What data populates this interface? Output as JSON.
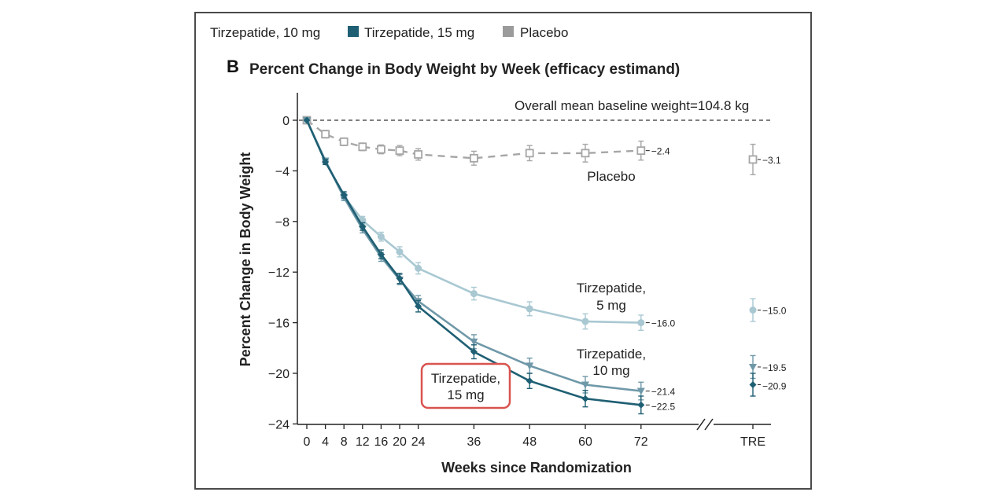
{
  "chart_data": {
    "type": "line",
    "panel_letter": "B",
    "title": "Percent Change in Body Weight by Week (efficacy estimand)",
    "xlabel": "Weeks since Randomization",
    "ylabel": "Percent Change in Body Weight",
    "x_ticks": [
      "0",
      "4",
      "8",
      "12",
      "16",
      "20",
      "24",
      "36",
      "48",
      "60",
      "72",
      "TRE"
    ],
    "y_ticks": [
      0,
      -4,
      -8,
      -12,
      -16,
      -20,
      -24
    ],
    "ylim": [
      -24,
      2
    ],
    "baseline_note": "Overall mean baseline weight=104.8 kg",
    "legend": [
      {
        "label": "Tirzepatide, 10 mg",
        "color": "#7fa3b1",
        "marker": "none"
      },
      {
        "label": "Tirzepatide, 15 mg",
        "color": "#1f5f73",
        "marker": "square"
      },
      {
        "label": "Placebo",
        "color": "#9b9b9b",
        "marker": "square"
      }
    ],
    "x": [
      0,
      4,
      8,
      12,
      16,
      20,
      24,
      36,
      48,
      60,
      72
    ],
    "series": [
      {
        "name": "Placebo",
        "color": "#a6a6a6",
        "style": "dashed",
        "marker": "open-square",
        "values": [
          0,
          -1.1,
          -1.7,
          -2.1,
          -2.3,
          -2.4,
          -2.7,
          -3.0,
          -2.6,
          -2.6,
          -2.4
        ],
        "errors": [
          0,
          0.3,
          0.3,
          0.3,
          0.35,
          0.4,
          0.45,
          0.55,
          0.6,
          0.7,
          0.75
        ],
        "end_label": "−2.4",
        "tre_value": -3.1,
        "tre_error": 1.2,
        "tre_label": "−3.1"
      },
      {
        "name": "Tirzepatide, 5 mg",
        "color": "#a9c8d2",
        "style": "solid",
        "marker": "circle",
        "values": [
          0,
          -3.2,
          -6.0,
          -7.9,
          -9.2,
          -10.4,
          -11.7,
          -13.7,
          -14.9,
          -15.9,
          -16.0
        ],
        "errors": [
          0,
          0.2,
          0.25,
          0.3,
          0.35,
          0.4,
          0.45,
          0.5,
          0.55,
          0.6,
          0.6
        ],
        "end_label": "−16.0",
        "tre_value": -15.0,
        "tre_error": 0.9,
        "tre_label": "−15.0"
      },
      {
        "name": "Tirzepatide, 10 mg",
        "color": "#6f98a8",
        "style": "solid",
        "marker": "triangle",
        "values": [
          0,
          -3.2,
          -6.1,
          -8.6,
          -10.8,
          -12.6,
          -14.3,
          -17.5,
          -19.4,
          -20.9,
          -21.4
        ],
        "errors": [
          0,
          0.2,
          0.25,
          0.3,
          0.35,
          0.4,
          0.45,
          0.55,
          0.6,
          0.65,
          0.7
        ],
        "end_label": "−21.4",
        "tre_value": -19.5,
        "tre_error": 0.9,
        "tre_label": "−19.5"
      },
      {
        "name": "Tirzepatide, 15 mg",
        "color": "#1f5f73",
        "style": "solid",
        "marker": "diamond",
        "values": [
          0,
          -3.3,
          -5.9,
          -8.4,
          -10.6,
          -12.5,
          -14.7,
          -18.3,
          -20.6,
          -22.0,
          -22.5
        ],
        "errors": [
          0,
          0.2,
          0.25,
          0.3,
          0.35,
          0.4,
          0.45,
          0.55,
          0.6,
          0.65,
          0.7
        ],
        "end_label": "−22.5",
        "tre_value": -20.9,
        "tre_error": 0.9,
        "tre_label": "−20.9"
      }
    ],
    "annotations": {
      "placebo": "Placebo",
      "tirz5_line1": "Tirzepatide,",
      "tirz5_line2": "5 mg",
      "tirz10_line1": "Tirzepatide,",
      "tirz10_line2": "10 mg",
      "tirz15_line1": "Tirzepatide,",
      "tirz15_line2": "15 mg"
    },
    "highlight_color": "#d9534f"
  }
}
